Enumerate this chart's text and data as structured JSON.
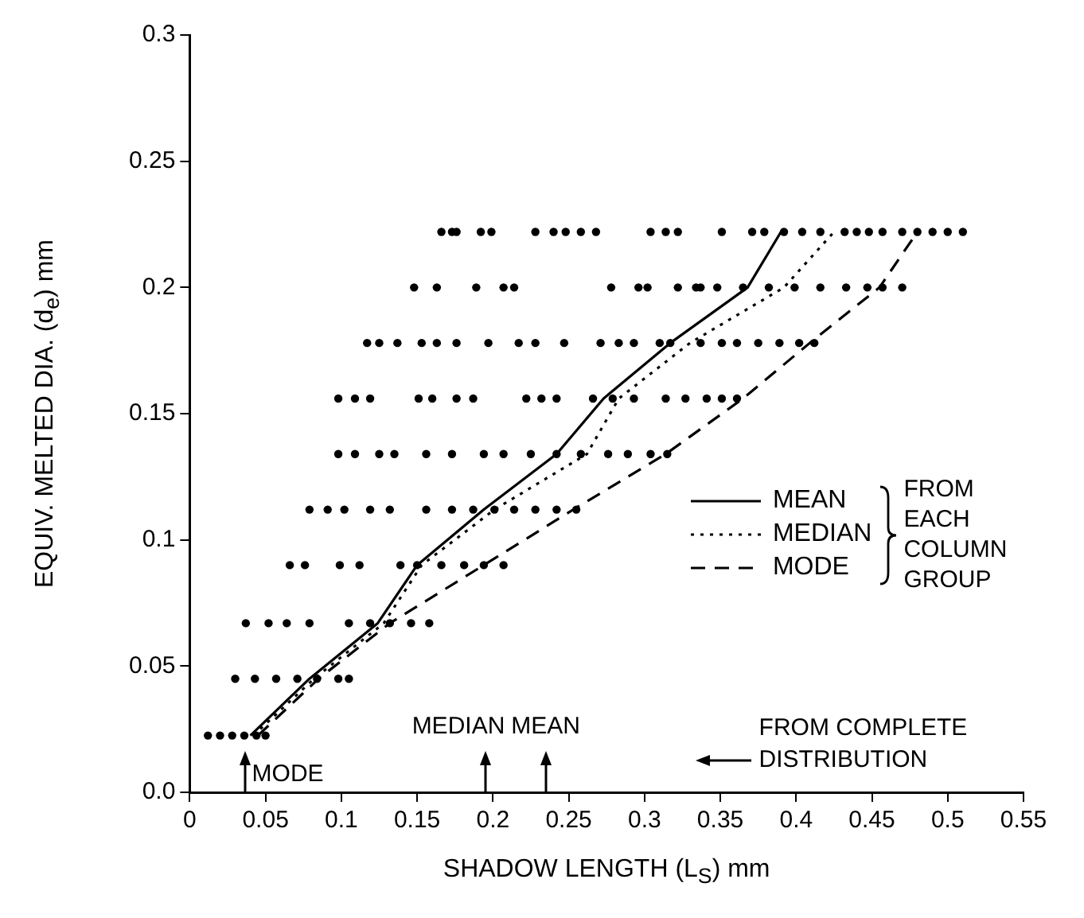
{
  "chart_data": {
    "type": "scatter",
    "xlabel": "SHADOW LENGTH (L$_{S}$) mm",
    "ylabel": "EQUIV. MELTED DIA. (d$_{e}$) mm",
    "legend_title": "FROM EACH COLUMN GROUP",
    "legend": "right",
    "grid": false,
    "xlim": [
      0,
      0.55
    ],
    "xticks": [
      0,
      0.05,
      0.1,
      0.15,
      0.2,
      0.25,
      0.3,
      0.35,
      0.4,
      0.45,
      0.5,
      0.55
    ],
    "ylim": [
      0,
      0.3
    ],
    "yticks": [
      {
        "value": 0,
        "label": "0.0"
      },
      0.05,
      0.1,
      0.15,
      0.2,
      0.25,
      0.3
    ],
    "annotations": [
      "MODE",
      "MEDIAN",
      "MEAN",
      "FROM COMPLETE DISTRIBUTION"
    ],
    "series": [
      {
        "type": "scatter",
        "color": "#000000",
        "marker": "circle",
        "x": [
          0.012,
          0.02,
          0.028,
          0.036,
          0.044,
          0.05,
          0.03,
          0.043,
          0.057,
          0.071,
          0.084,
          0.098,
          0.105,
          0.037,
          0.052,
          0.064,
          0.079,
          0.105,
          0.119,
          0.132,
          0.146,
          0.158,
          0.066,
          0.076,
          0.099,
          0.112,
          0.139,
          0.15,
          0.166,
          0.181,
          0.194,
          0.207,
          0.079,
          0.091,
          0.102,
          0.119,
          0.132,
          0.156,
          0.173,
          0.187,
          0.201,
          0.214,
          0.228,
          0.242,
          0.255,
          0.098,
          0.109,
          0.125,
          0.135,
          0.156,
          0.173,
          0.194,
          0.207,
          0.225,
          0.242,
          0.258,
          0.276,
          0.289,
          0.304,
          0.315,
          0.098,
          0.109,
          0.119,
          0.151,
          0.16,
          0.176,
          0.187,
          0.222,
          0.232,
          0.242,
          0.266,
          0.279,
          0.293,
          0.314,
          0.327,
          0.341,
          0.351,
          0.361,
          0.117,
          0.125,
          0.137,
          0.153,
          0.163,
          0.176,
          0.197,
          0.217,
          0.228,
          0.247,
          0.271,
          0.283,
          0.293,
          0.31,
          0.317,
          0.337,
          0.351,
          0.361,
          0.375,
          0.389,
          0.402,
          0.412,
          0.148,
          0.163,
          0.189,
          0.207,
          0.214,
          0.278,
          0.296,
          0.302,
          0.322,
          0.334,
          0.337,
          0.348,
          0.365,
          0.382,
          0.399,
          0.416,
          0.433,
          0.447,
          0.457,
          0.47,
          0.166,
          0.173,
          0.176,
          0.192,
          0.199,
          0.228,
          0.24,
          0.248,
          0.258,
          0.268,
          0.304,
          0.314,
          0.322,
          0.351,
          0.371,
          0.379,
          0.392,
          0.404,
          0.416,
          0.432,
          0.44,
          0.448,
          0.457,
          0.47,
          0.48,
          0.49,
          0.5,
          0.51
        ],
        "values": [
          0.0225,
          0.0225,
          0.0225,
          0.0225,
          0.0225,
          0.0225,
          0.045,
          0.045,
          0.045,
          0.045,
          0.045,
          0.045,
          0.045,
          0.067,
          0.067,
          0.067,
          0.067,
          0.067,
          0.067,
          0.067,
          0.067,
          0.067,
          0.09,
          0.09,
          0.09,
          0.09,
          0.09,
          0.09,
          0.09,
          0.09,
          0.09,
          0.09,
          0.112,
          0.112,
          0.112,
          0.112,
          0.112,
          0.112,
          0.112,
          0.112,
          0.112,
          0.112,
          0.112,
          0.112,
          0.112,
          0.134,
          0.134,
          0.134,
          0.134,
          0.134,
          0.134,
          0.134,
          0.134,
          0.134,
          0.134,
          0.134,
          0.134,
          0.134,
          0.134,
          0.134,
          0.156,
          0.156,
          0.156,
          0.156,
          0.156,
          0.156,
          0.156,
          0.156,
          0.156,
          0.156,
          0.156,
          0.156,
          0.156,
          0.156,
          0.156,
          0.156,
          0.156,
          0.156,
          0.178,
          0.178,
          0.178,
          0.178,
          0.178,
          0.178,
          0.178,
          0.178,
          0.178,
          0.178,
          0.178,
          0.178,
          0.178,
          0.178,
          0.178,
          0.178,
          0.178,
          0.178,
          0.178,
          0.178,
          0.178,
          0.178,
          0.2,
          0.2,
          0.2,
          0.2,
          0.2,
          0.2,
          0.2,
          0.2,
          0.2,
          0.2,
          0.2,
          0.2,
          0.2,
          0.2,
          0.2,
          0.2,
          0.2,
          0.2,
          0.2,
          0.2,
          0.222,
          0.222,
          0.222,
          0.222,
          0.222,
          0.222,
          0.222,
          0.222,
          0.222,
          0.222,
          0.222,
          0.222,
          0.222,
          0.222,
          0.222,
          0.222,
          0.222,
          0.222,
          0.222,
          0.222,
          0.222,
          0.222,
          0.222,
          0.222,
          0.222,
          0.222,
          0.222,
          0.222
        ]
      },
      {
        "type": "line",
        "name": "MEAN",
        "color": "#000000",
        "line_style": "solid",
        "marker": "none",
        "x": [
          0.04,
          0.079,
          0.124,
          0.15,
          0.194,
          0.242,
          0.273,
          0.317,
          0.368,
          0.39
        ],
        "values": [
          0.0225,
          0.045,
          0.067,
          0.09,
          0.112,
          0.134,
          0.156,
          0.178,
          0.2,
          0.222
        ]
      },
      {
        "type": "line",
        "name": "MEDIAN",
        "color": "#000000",
        "line_style": "dotted",
        "marker": "none",
        "x": [
          0.042,
          0.082,
          0.128,
          0.153,
          0.201,
          0.262,
          0.283,
          0.33,
          0.392,
          0.425
        ],
        "values": [
          0.0225,
          0.045,
          0.067,
          0.09,
          0.112,
          0.134,
          0.156,
          0.178,
          0.2,
          0.222
        ]
      },
      {
        "type": "line",
        "name": "MODE",
        "color": "#000000",
        "line_style": "dashed",
        "marker": "none",
        "x": [
          0.045,
          0.085,
          0.132,
          0.194,
          0.253,
          0.314,
          0.365,
          0.409,
          0.455,
          0.48
        ],
        "values": [
          0.0225,
          0.045,
          0.067,
          0.09,
          0.112,
          0.134,
          0.156,
          0.178,
          0.2,
          0.222
        ]
      }
    ]
  }
}
